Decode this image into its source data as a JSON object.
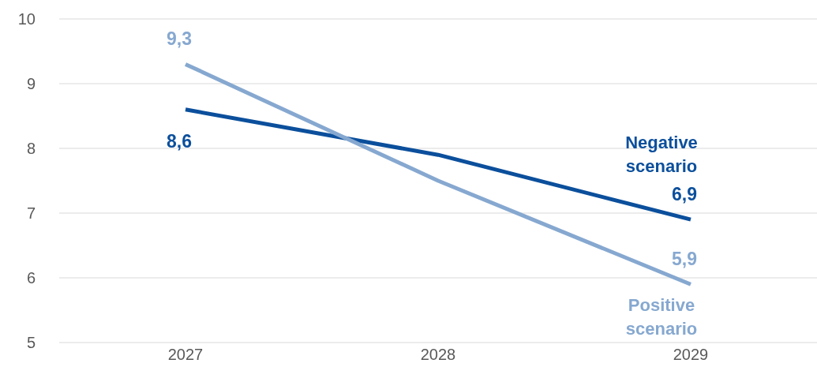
{
  "chart_data": {
    "type": "line",
    "categories": [
      "2027",
      "2028",
      "2029"
    ],
    "series": [
      {
        "name": "Negative scenario",
        "color": "#0b4f9c",
        "values": [
          8.6,
          7.9,
          6.9
        ],
        "value_labels": [
          "8,6",
          null,
          "6,9"
        ]
      },
      {
        "name": "Positive scenario",
        "color": "#86a8d0",
        "values": [
          9.3,
          7.5,
          5.9
        ],
        "value_labels": [
          "9,3",
          null,
          "5,9"
        ]
      }
    ],
    "ylim": [
      5,
      10
    ],
    "yticks": [
      5,
      6,
      7,
      8,
      9,
      10
    ],
    "grid": "y",
    "marker": "none",
    "line_style": "solid",
    "legend": false
  }
}
